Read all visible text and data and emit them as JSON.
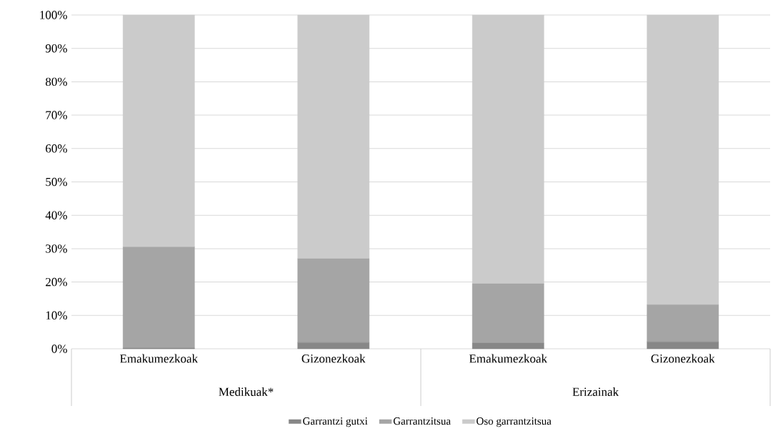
{
  "chart_data": {
    "type": "bar",
    "stacked": true,
    "categories": [
      "Emakumezkoak",
      "Gizonezkoak",
      "Emakumezkoak",
      "Gizonezkoak"
    ],
    "annotations": [
      "Medikuak*",
      "Erizainak"
    ],
    "series": [
      {
        "name": "Garrantzi gutxi",
        "color": "#878787",
        "values": [
          0.2,
          1.9,
          1.7,
          2.1
        ]
      },
      {
        "name": "Garrantzitsua",
        "color": "#a5a5a5",
        "values": [
          30.3,
          25.1,
          17.8,
          11.1
        ]
      },
      {
        "name": "Oso garrantzitsua",
        "color": "#cbcbcb",
        "values": [
          69.5,
          73.0,
          80.5,
          86.8
        ]
      }
    ],
    "ylim": [
      0,
      100
    ],
    "yticks": [
      {
        "value": 0,
        "label": "0%"
      },
      {
        "value": 10,
        "label": "10%"
      },
      {
        "value": 20,
        "label": "20%"
      },
      {
        "value": 30,
        "label": "30%"
      },
      {
        "value": 40,
        "label": "40%"
      },
      {
        "value": 50,
        "label": "50%"
      },
      {
        "value": 60,
        "label": "60%"
      },
      {
        "value": 70,
        "label": "70%"
      },
      {
        "value": 80,
        "label": "80%"
      },
      {
        "value": 90,
        "label": "90%"
      },
      {
        "value": 100,
        "label": "100%"
      }
    ],
    "grid": "y",
    "legend": "bottom"
  }
}
